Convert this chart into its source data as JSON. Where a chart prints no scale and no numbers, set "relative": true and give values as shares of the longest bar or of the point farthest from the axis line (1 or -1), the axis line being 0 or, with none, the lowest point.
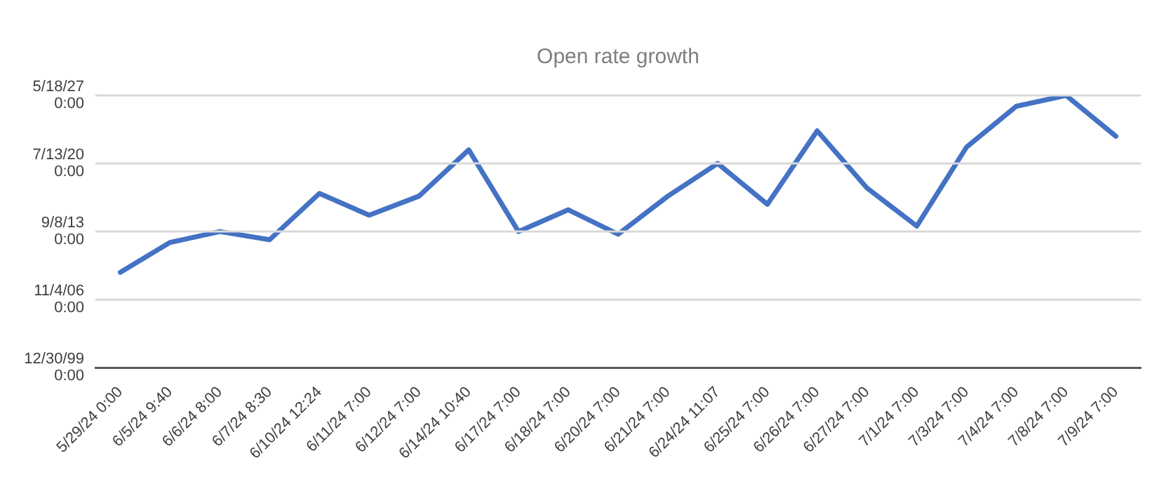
{
  "chart_data": {
    "type": "line",
    "title": "Open rate growth",
    "relative": true,
    "categories": [
      "5/29/24 0:00",
      "6/5/24 9:40",
      "6/6/24 8:00",
      "6/7/24 8:30",
      "6/10/24 12:24",
      "6/11/24 7:00",
      "6/12/24 7:00",
      "6/14/24 10:40",
      "6/17/24 7:00",
      "6/18/24 7:00",
      "6/20/24 7:00",
      "6/21/24 7:00",
      "6/24/24 11:07",
      "6/25/24 7:00",
      "6/26/24 7:00",
      "6/27/24 7:00",
      "7/1/24 7:00",
      "7/3/24 7:00",
      "7/4/24 7:00",
      "7/8/24 7:00",
      "7/9/24 7:00"
    ],
    "series": [
      {
        "color": "#4472c4",
        "values": [
          0.35,
          0.46,
          0.5,
          0.47,
          0.64,
          0.56,
          0.63,
          0.8,
          0.5,
          0.58,
          0.49,
          0.63,
          0.75,
          0.6,
          0.87,
          0.66,
          0.52,
          0.81,
          0.96,
          1,
          0.85
        ]
      }
    ],
    "annotations": [
      "5/18/27 0:00",
      "7/13/20 0:00",
      "9/8/13 0:00",
      "11/4/06 0:00",
      "12/30/99 0:00"
    ],
    "grid": "y",
    "legend": false,
    "marker": "none",
    "line_style": "solid"
  }
}
